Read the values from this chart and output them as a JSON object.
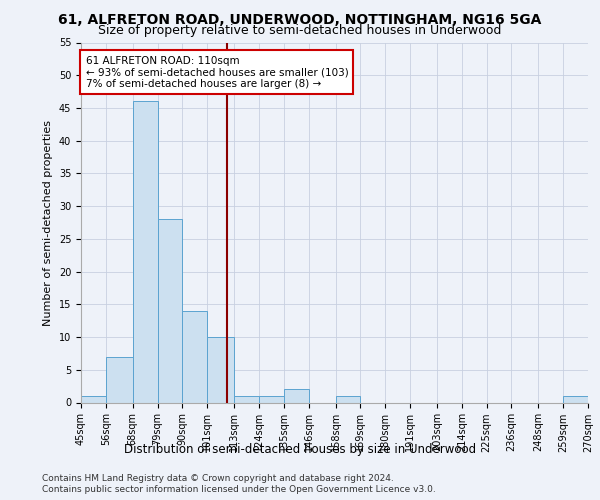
{
  "title1": "61, ALFRETON ROAD, UNDERWOOD, NOTTINGHAM, NG16 5GA",
  "title2": "Size of property relative to semi-detached houses in Underwood",
  "xlabel": "Distribution of semi-detached houses by size in Underwood",
  "ylabel": "Number of semi-detached properties",
  "footnote1": "Contains HM Land Registry data © Crown copyright and database right 2024.",
  "footnote2": "Contains public sector information licensed under the Open Government Licence v3.0.",
  "annotation_title": "61 ALFRETON ROAD: 110sqm",
  "annotation_line1": "← 93% of semi-detached houses are smaller (103)",
  "annotation_line2": "7% of semi-detached houses are larger (8) →",
  "subject_value": 110,
  "bin_edges": [
    45,
    56,
    68,
    79,
    90,
    101,
    113,
    124,
    135,
    146,
    158,
    169,
    180,
    191,
    203,
    214,
    225,
    236,
    248,
    259,
    270
  ],
  "bar_heights": [
    1,
    7,
    46,
    28,
    14,
    10,
    1,
    1,
    2,
    0,
    1,
    0,
    0,
    0,
    0,
    0,
    0,
    0,
    0,
    1
  ],
  "bar_color": "#cce0f0",
  "bar_edge_color": "#5ba3d0",
  "vline_color": "#8b0000",
  "vline_x": 110,
  "ylim": [
    0,
    55
  ],
  "yticks": [
    0,
    5,
    10,
    15,
    20,
    25,
    30,
    35,
    40,
    45,
    50,
    55
  ],
  "background_color": "#eef2f9",
  "grid_color": "#c8d0e0",
  "annotation_box_color": "#ffffff",
  "annotation_border_color": "#cc0000",
  "title1_fontsize": 10,
  "title2_fontsize": 9,
  "ylabel_fontsize": 8,
  "xlabel_fontsize": 8.5,
  "footnote_fontsize": 6.5,
  "tick_fontsize": 7,
  "annot_fontsize": 7.5
}
